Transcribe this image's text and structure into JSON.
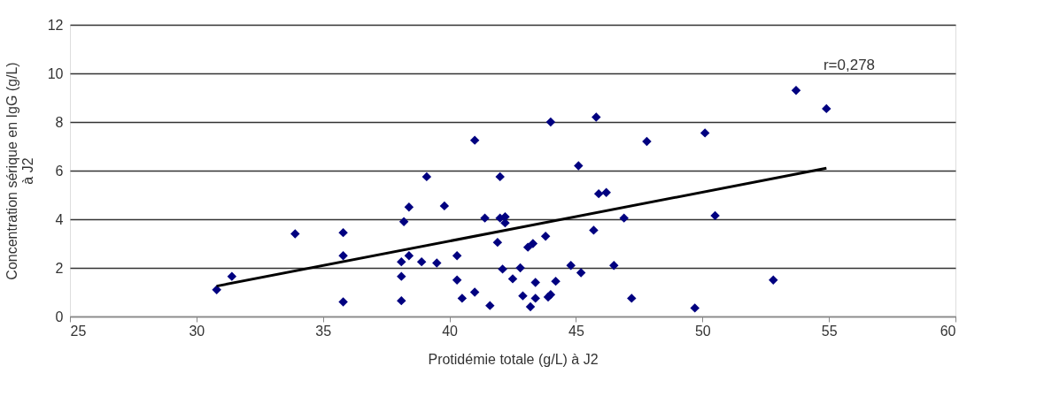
{
  "chart_data": {
    "type": "scatter",
    "xlabel": "Protidémie totale (g/L) à J2",
    "ylabel": "Concentration sérique en IgG (g/L) à J2",
    "xlim": [
      25,
      60
    ],
    "xticks": [
      25,
      30,
      35,
      40,
      45,
      50,
      55,
      60
    ],
    "ylim": [
      0,
      12
    ],
    "yticks": [
      0,
      2,
      4,
      6,
      8,
      10,
      12
    ],
    "grid": "y",
    "marker": "diamond",
    "annotations": [
      "r=0,278"
    ],
    "series": [
      {
        "type": "scatter",
        "color": "#000080",
        "x": [
          30.8,
          31.4,
          33.9,
          35.8,
          35.8,
          35.8,
          38.1,
          38.1,
          38.1,
          38.2,
          38.4,
          38.4,
          38.9,
          39.1,
          39.5,
          39.8,
          40.3,
          40.3,
          40.5,
          41.0,
          41.0,
          41.4,
          41.6,
          41.9,
          42.0,
          42.0,
          42.1,
          42.2,
          42.2,
          42.5,
          42.8,
          42.9,
          43.1,
          43.2,
          43.3,
          43.4,
          43.4,
          43.8,
          43.9,
          44.0,
          44.0,
          44.2,
          44.8,
          45.1,
          45.2,
          45.7,
          45.8,
          45.9,
          46.2,
          46.5,
          46.9,
          47.2,
          47.8,
          49.7,
          50.1,
          50.5,
          52.8,
          53.7,
          54.9
        ],
        "values": [
          1.1,
          1.65,
          3.4,
          2.5,
          3.45,
          0.6,
          1.65,
          0.65,
          2.25,
          3.9,
          4.5,
          2.5,
          2.25,
          5.75,
          2.2,
          4.55,
          2.5,
          1.5,
          0.75,
          7.25,
          1.0,
          4.05,
          0.45,
          3.05,
          5.75,
          4.05,
          1.95,
          4.1,
          3.85,
          1.55,
          2.0,
          0.85,
          2.85,
          0.4,
          3.0,
          0.75,
          1.4,
          3.3,
          0.8,
          8.0,
          0.9,
          1.45,
          2.1,
          6.2,
          1.8,
          3.55,
          8.2,
          5.05,
          5.1,
          2.1,
          4.05,
          0.75,
          7.2,
          0.35,
          7.55,
          4.15,
          1.5,
          9.3,
          8.55
        ]
      },
      {
        "type": "line",
        "marker": "none",
        "color": "#000000",
        "x": [
          30.8,
          54.9
        ],
        "values": [
          1.25,
          6.1
        ]
      }
    ]
  }
}
